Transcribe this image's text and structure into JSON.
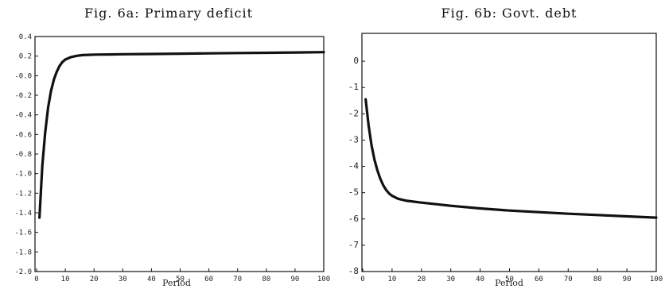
{
  "chart_data": [
    {
      "type": "line",
      "title": "Fig. 6a: Primary deficit",
      "xlabel": "Period",
      "ylabel": "",
      "xlim": [
        0,
        100
      ],
      "ylim": [
        -2.0,
        0.4
      ],
      "x_ticks": [
        "0",
        "10",
        "20",
        "30",
        "40",
        "50",
        "60",
        "70",
        "80",
        "90",
        "100"
      ],
      "y_ticks": [
        "0.4",
        "0.2",
        "-0.0",
        "-0.2",
        "-0.4",
        "-0.6",
        "-0.8",
        "-1.0",
        "-1.2",
        "-1.4",
        "-1.6",
        "-1.8",
        "-2.0"
      ],
      "grid": false,
      "series": [
        {
          "x": [
            1,
            2,
            3,
            4,
            5,
            6,
            7,
            8,
            9,
            10,
            12,
            14,
            16,
            18,
            20,
            25,
            30,
            40,
            50,
            60,
            70,
            80,
            90,
            100
          ],
          "values": [
            -1.45,
            -0.92,
            -0.58,
            -0.33,
            -0.16,
            -0.04,
            0.04,
            0.1,
            0.14,
            0.165,
            0.19,
            0.203,
            0.21,
            0.213,
            0.215,
            0.217,
            0.219,
            0.222,
            0.225,
            0.228,
            0.231,
            0.234,
            0.237,
            0.24
          ]
        }
      ]
    },
    {
      "type": "line",
      "title": "Fig. 6b: Govt. debt",
      "xlabel": "Period",
      "ylabel": "",
      "xlim": [
        0,
        100
      ],
      "ylim": [
        -8,
        1
      ],
      "x_ticks": [
        "0",
        "10",
        "20",
        "30",
        "40",
        "50",
        "60",
        "70",
        "80",
        "90",
        "100"
      ],
      "y_ticks": [
        "0",
        "-1",
        "-2",
        "-3",
        "-4",
        "-5",
        "-6",
        "-7",
        "-8"
      ],
      "grid": false,
      "series": [
        {
          "x": [
            1,
            2,
            3,
            4,
            5,
            6,
            7,
            8,
            9,
            10,
            12,
            15,
            20,
            25,
            30,
            40,
            50,
            60,
            70,
            80,
            90,
            100
          ],
          "values": [
            -1.45,
            -2.45,
            -3.2,
            -3.75,
            -4.15,
            -4.47,
            -4.72,
            -4.9,
            -5.03,
            -5.12,
            -5.23,
            -5.31,
            -5.38,
            -5.44,
            -5.5,
            -5.6,
            -5.68,
            -5.74,
            -5.8,
            -5.85,
            -5.9,
            -5.95
          ]
        }
      ]
    }
  ]
}
